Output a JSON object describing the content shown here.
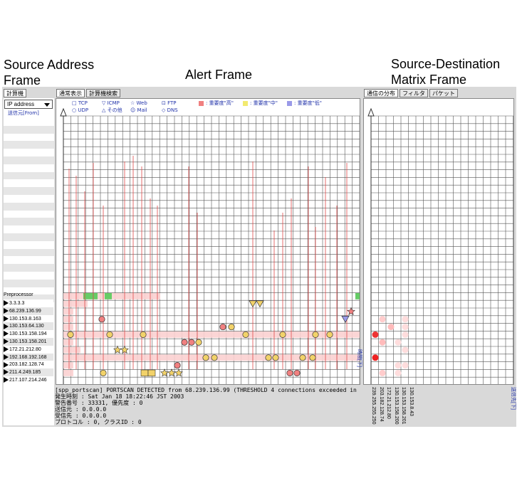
{
  "frame_titles": {
    "source_address": "Source Address Frame",
    "alert": "Alert Frame",
    "matrix": "Source-Destination Matrix Frame"
  },
  "left_panel": {
    "tab": "計算機",
    "dropdown_value": "IP address",
    "subheader": "送信元[From]",
    "preprocessor_label": "Preprocessor",
    "addresses": [
      "3.3.3.3",
      "68.239.136.99",
      "130.153.8.163",
      "130.153.64.130",
      "130.153.158.194",
      "130.153.158.201",
      "172.21.212.80",
      "192.168.192.168",
      "203.182.128.74",
      "211.4.249.185",
      "217.107.214.246"
    ]
  },
  "alert_panel": {
    "tabs": [
      "通常表示",
      "計算機検索"
    ],
    "legend": [
      {
        "symbol": "□",
        "label": "TCP"
      },
      {
        "symbol": "▽",
        "label": "ICMP"
      },
      {
        "symbol": "☆",
        "label": "Web"
      },
      {
        "symbol": "⊡",
        "label": "FTP"
      },
      {
        "symbol": "○",
        "label": "UDP"
      },
      {
        "symbol": "△",
        "label": "その他"
      },
      {
        "symbol": "☺",
        "label": "Mail"
      },
      {
        "symbol": "◇",
        "label": "DNS"
      }
    ],
    "severity_legend": [
      {
        "label": ": 重要度\"高\"",
        "color": "#f08080"
      },
      {
        "label": ": 重要度\"中\"",
        "color": "#f2ea70"
      },
      {
        "label": ": 重要度\"低\"",
        "color": "#9a9ae8"
      }
    ],
    "time_axis_label": "時間[下]",
    "status_lines": [
      "[spp_portscan] PORTSCAN DETECTED from 68.239.136.99 (THRESHOLD 4 connections exceeded in 3 sec)",
      "発生時刻 : Sat Jan 18 18:22:46 JST 2003",
      "警告番号 : 33331, 優先度 : 0",
      "送信元 : 0.0.0.0",
      "受信先 : 0.0.0.0",
      "プロトコル : 0, クラスID : 0"
    ]
  },
  "matrix_panel": {
    "tabs": [
      "通信の分布",
      "フィルタ",
      "パケット"
    ],
    "axis_label": "送信先[下]",
    "column_labels": [
      "239.255.255.250",
      "203.182.128.74",
      "172.21.212.80",
      "130.153.158.200",
      "130.153.158.201",
      "130.153.8.43"
    ]
  },
  "colors": {
    "high": "#f08080",
    "high_band": "#fbd0d0",
    "mid": "#f2d26a",
    "low": "#9a9ae8",
    "green": "#66cc66",
    "grid": "#555555",
    "link": "#2233aa"
  }
}
